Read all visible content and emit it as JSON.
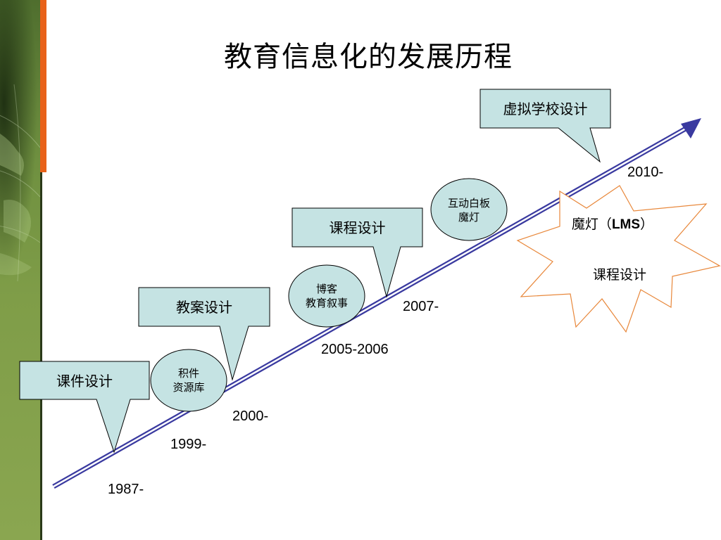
{
  "title": "教育信息化的发展历程",
  "colors": {
    "callout_fill": "#c5e3e3",
    "arrow_blue": "#3a3aa0",
    "star_orange": "#e8873a",
    "accent_orange": "#e8621a",
    "side_green": "#7f9d48"
  },
  "years": [
    "1987-",
    "1999-",
    "2000-",
    "2005-2006",
    "2007-",
    "2010-"
  ],
  "callouts": [
    {
      "label": "课件设计"
    },
    {
      "label": "教案设计"
    },
    {
      "label": "课程设计"
    },
    {
      "label": "虚拟学校设计"
    }
  ],
  "ellipses": [
    {
      "line1": "积件",
      "line2": "资源库"
    },
    {
      "line1": "博客",
      "line2": "教育叙事"
    },
    {
      "line1": "互动白板",
      "line2": "魔灯"
    }
  ],
  "star": {
    "line1_prefix": "魔灯（",
    "line1_bold": "LMS",
    "line1_suffix": "）",
    "line2": "课程设计"
  }
}
